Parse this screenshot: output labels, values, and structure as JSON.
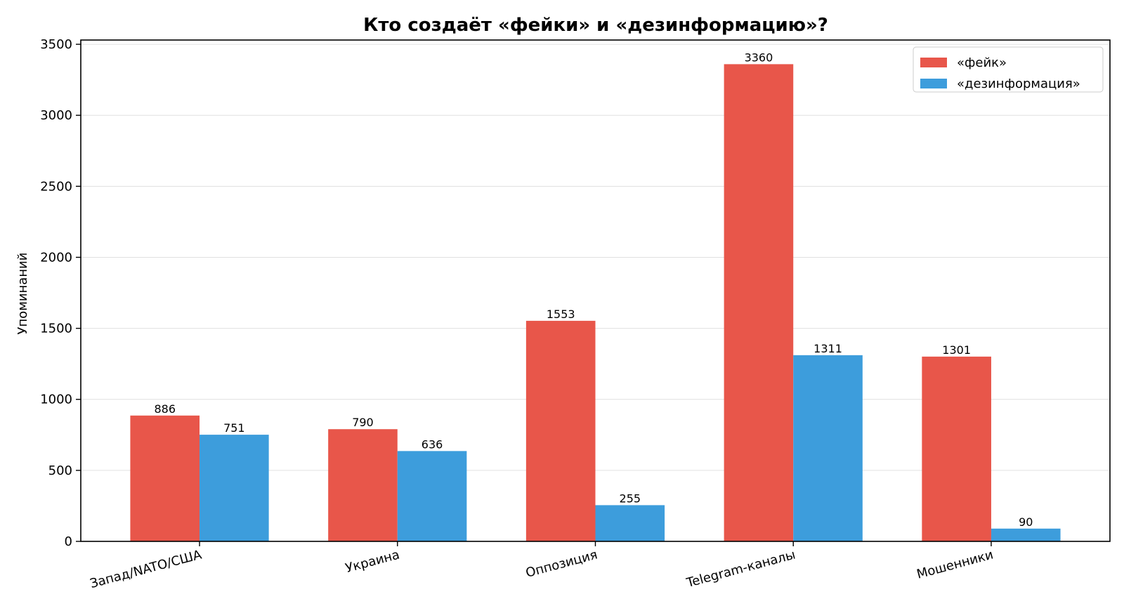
{
  "chart_data": {
    "type": "bar",
    "title": "Кто создаёт «фейки» и «дезинформацию»?",
    "xlabel": "",
    "ylabel": "Упоминаний",
    "categories": [
      "Запад/NATO/США",
      "Украина",
      "Оппозиция",
      "Telegram-каналы",
      "Мошенники"
    ],
    "series": [
      {
        "name": "«фейк»",
        "values": [
          886,
          790,
          1553,
          3360,
          1301
        ],
        "color": "#e8564a"
      },
      {
        "name": "«дезинформация»",
        "values": [
          751,
          636,
          255,
          1311,
          90
        ],
        "color": "#3d9ddc"
      }
    ],
    "ylim": [
      0,
      3530
    ],
    "yticks": [
      0,
      500,
      1000,
      1500,
      2000,
      2500,
      3000,
      3500
    ],
    "grid": "horizontal",
    "legend_position": "top-right",
    "colors": {
      "axis": "#000000",
      "grid": "#e0e0e0"
    }
  }
}
